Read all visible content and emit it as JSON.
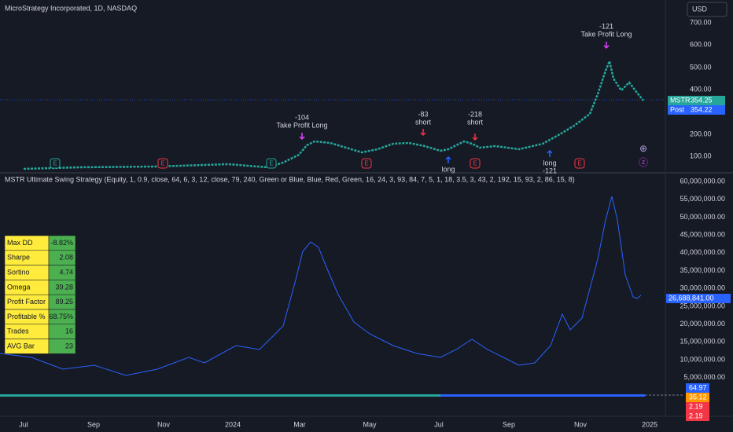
{
  "header": {
    "title": "MicroStrategy Incorporated, 1D, NASDAQ",
    "currency": "USD"
  },
  "price_axis": {
    "labels": [
      "700.00",
      "600.00",
      "500.00",
      "400.00",
      "200.00",
      "100.00"
    ],
    "tags": [
      {
        "name": "MSTR",
        "value": "354.25"
      },
      {
        "name": "Post",
        "value": "354.22"
      }
    ]
  },
  "annotations": [
    {
      "lines": [
        "-121",
        "Take Profit Long"
      ]
    },
    {
      "lines": [
        "-104",
        "Take Profit Long"
      ]
    },
    {
      "lines": [
        "-83",
        "short"
      ]
    },
    {
      "lines": [
        "-218",
        "short"
      ]
    },
    {
      "lines": [
        "long",
        "-121"
      ]
    },
    {
      "lines": [
        "long"
      ]
    }
  ],
  "event_markers": [
    "E",
    "E",
    "E",
    "E",
    "E",
    "E"
  ],
  "indicator": {
    "title": "MSTR Ultimate Swing Strategy (Equity, 1, 0.9, close, 64, 6, 3, 12, close, 79, 240, Green or Blue, Blue, Red, Green, 16, 24, 3, 93, 84, 7, 5, 1, 18, 3.5, 3, 43, 2, 192, 15, 93, 2, 86, 15, 8)",
    "axis_labels": [
      "60,000,000.00",
      "55,000,000.00",
      "50,000,000.00",
      "45,000,000.00",
      "40,000,000.00",
      "35,000,000.00",
      "30,000,000.00",
      "25,000,000.00",
      "20,000,000.00",
      "15,000,000.00",
      "10,000,000.00",
      "5,000,000.00"
    ],
    "equity_tag": "26,688,841.00",
    "bottom_tags": [
      "64.97",
      "35.12",
      "2.19",
      "2.19"
    ]
  },
  "table": {
    "rows": [
      [
        "Max DD",
        "-8.82%"
      ],
      [
        "Sharpe",
        "2.08"
      ],
      [
        "Sortino",
        "4.74"
      ],
      [
        "Omega",
        "39.28"
      ],
      [
        "Profit Factor",
        "89.25"
      ],
      [
        "Profitable %",
        "68.75%"
      ],
      [
        "Trades",
        "16"
      ],
      [
        "AVG Bar",
        "23"
      ]
    ]
  },
  "time_axis": [
    "Jul",
    "Sep",
    "Nov",
    "2024",
    "Mar",
    "May",
    "Jul",
    "Sep",
    "Nov",
    "2025"
  ]
}
